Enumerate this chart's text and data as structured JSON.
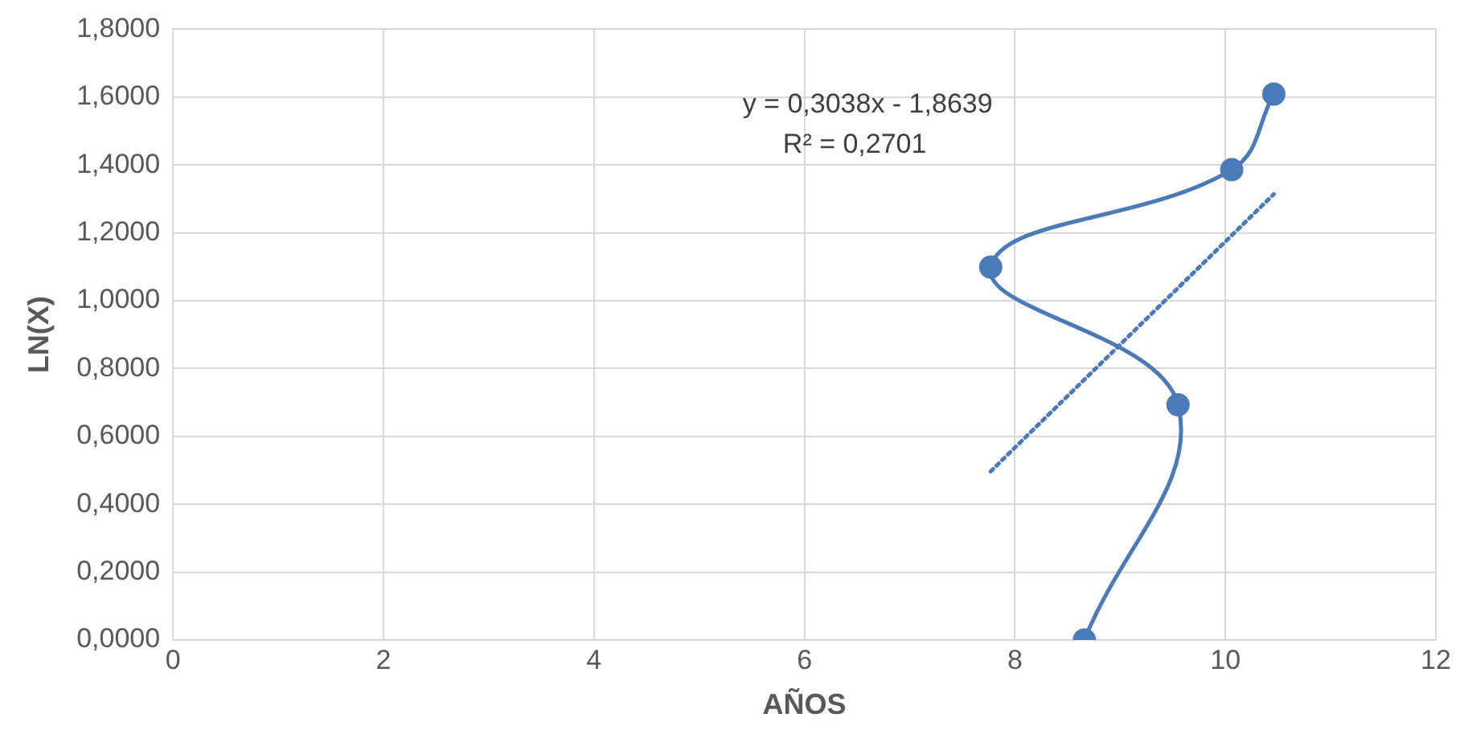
{
  "chart_data": {
    "type": "line",
    "xlabel": "AÑOS",
    "ylabel": "LN(X)",
    "xlim": [
      0,
      12
    ],
    "xticks": [
      0,
      2,
      4,
      6,
      8,
      10,
      12
    ],
    "ylim": [
      0,
      1.8
    ],
    "yticks": [
      {
        "value": 0,
        "label": "0,0000"
      },
      {
        "value": 0.2,
        "label": "0,2000"
      },
      {
        "value": 0.4,
        "label": "0,4000"
      },
      {
        "value": 0.6,
        "label": "0,6000"
      },
      {
        "value": 0.8,
        "label": "0,8000"
      },
      {
        "value": 1.0,
        "label": "1,0000"
      },
      {
        "value": 1.2,
        "label": "1,2000"
      },
      {
        "value": 1.4,
        "label": "1,4000"
      },
      {
        "value": 1.6,
        "label": "1,6000"
      },
      {
        "value": 1.8,
        "label": "1,8000"
      }
    ],
    "grid": true,
    "legend": false,
    "series": [
      {
        "type": "line",
        "color": "#4a7ab8",
        "marker": "circle",
        "line_style": "solid",
        "x": [
          8.66,
          9.55,
          7.77,
          10.06,
          10.46
        ],
        "values": [
          0,
          0.693,
          1.099,
          1.386,
          1.609
        ]
      },
      {
        "type": "line",
        "color": "#4a7ab8",
        "marker": "none",
        "line_style": "dotted",
        "x": [
          7.77,
          10.46
        ],
        "values": [
          0.497,
          1.314
        ]
      }
    ],
    "annotations": [
      "y = 0,3038x - 1,8639",
      "R² = 0,2701"
    ]
  }
}
